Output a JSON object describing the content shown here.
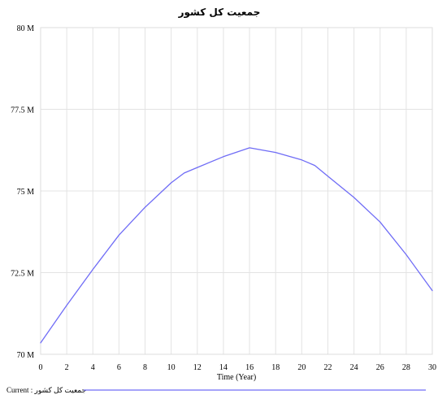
{
  "chart_data": {
    "type": "line",
    "title": "جمعیت کل کشور",
    "xlabel": "Time (Year)",
    "ylabel": "",
    "xlim": [
      0,
      30
    ],
    "ylim": [
      70,
      80
    ],
    "x_ticks": [
      0,
      2,
      4,
      6,
      8,
      10,
      12,
      14,
      16,
      18,
      20,
      22,
      24,
      26,
      28,
      30
    ],
    "y_ticks": [
      70,
      72.5,
      75,
      77.5,
      80
    ],
    "y_tick_labels": [
      "70 M",
      "72.5 M",
      "75 M",
      "77.5 M",
      "80 M"
    ],
    "grid": true,
    "legend_position": "bottom",
    "series": [
      {
        "name": "جمعیت کل کشور : Current",
        "color": "#6f6cf6",
        "x": [
          0,
          2,
          4,
          6,
          8,
          10,
          11,
          12,
          14,
          16,
          18,
          20,
          21,
          22,
          24,
          26,
          28,
          30
        ],
        "y": [
          70.35,
          71.5,
          72.6,
          73.65,
          74.5,
          75.25,
          75.55,
          75.72,
          76.05,
          76.32,
          76.18,
          75.95,
          75.78,
          75.45,
          74.8,
          74.05,
          73.05,
          71.95
        ]
      }
    ]
  }
}
